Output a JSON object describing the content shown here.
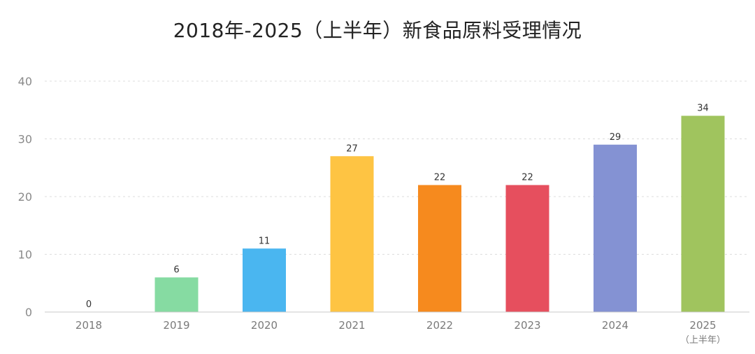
{
  "chart_data": {
    "type": "bar",
    "title": "2018年-2025（上半年）新食品原料受理情况",
    "categories": [
      "2018",
      "2019",
      "2020",
      "2021",
      "2022",
      "2023",
      "2024",
      "2025"
    ],
    "category_sublabels": [
      "",
      "",
      "",
      "",
      "",
      "",
      "",
      "（上半年）"
    ],
    "values": [
      0,
      6,
      11,
      27,
      22,
      22,
      29,
      34
    ],
    "colors": [
      "#9dd3a8",
      "#86dba2",
      "#4ab6f0",
      "#fec443",
      "#f68a1e",
      "#e64f5e",
      "#8492d3",
      "#a0c45e"
    ],
    "ylim": [
      0,
      40
    ],
    "yticks": [
      0,
      10,
      20,
      30,
      40
    ],
    "grid": true,
    "xlabel": "",
    "ylabel": ""
  }
}
